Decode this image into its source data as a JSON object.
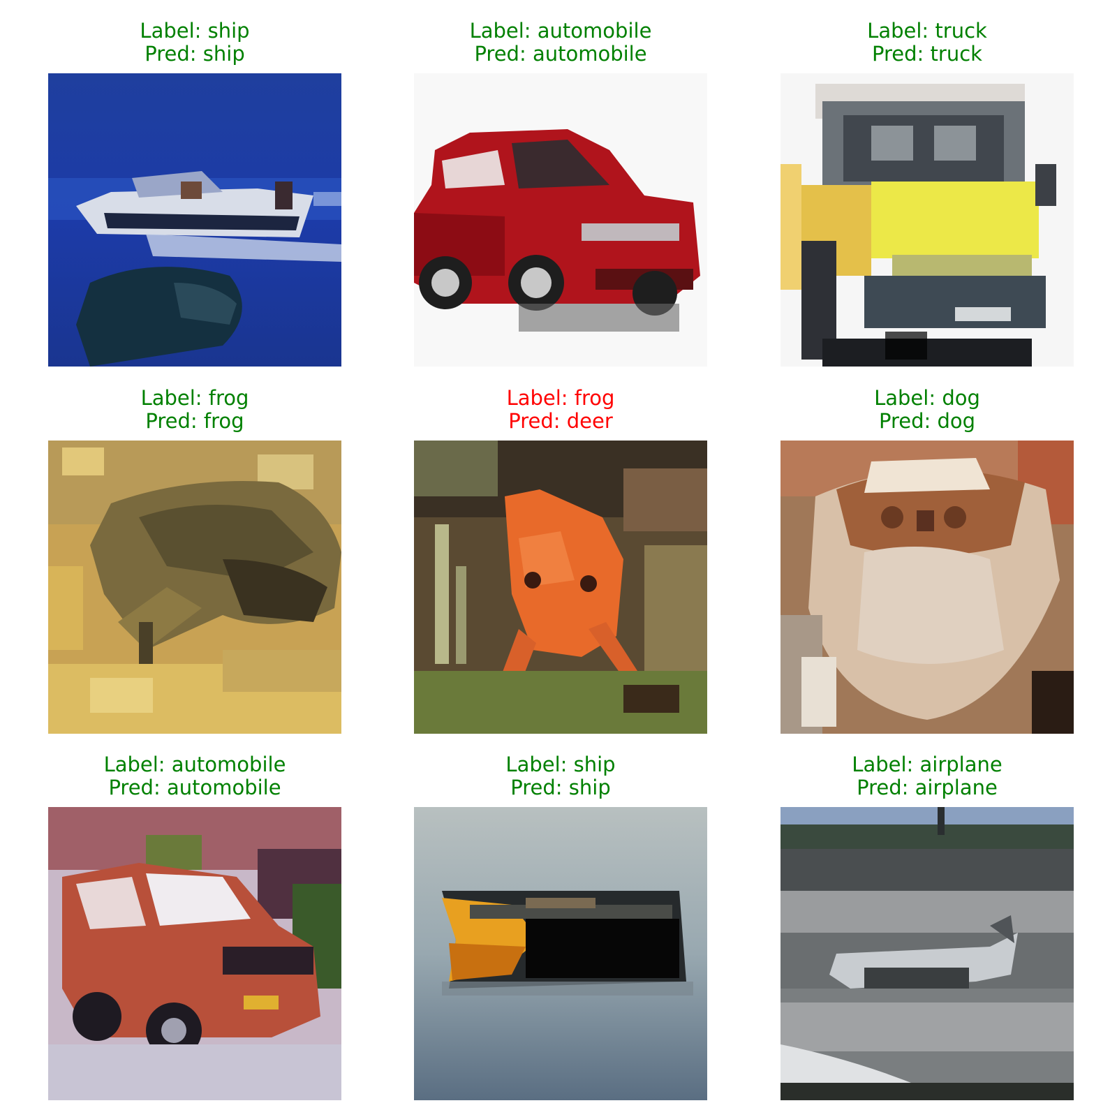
{
  "colors": {
    "correct": "#008000",
    "incorrect": "#ff0000"
  },
  "predictions": [
    {
      "label_text": "Label: ship",
      "pred_text": "Pred: ship",
      "label": "ship",
      "pred": "ship",
      "correct": true,
      "image": "speedboat-on-blue-water"
    },
    {
      "label_text": "Label: automobile",
      "pred_text": "Pred: automobile",
      "label": "automobile",
      "pred": "automobile",
      "correct": true,
      "image": "red-hatchback-on-white"
    },
    {
      "label_text": "Label: truck",
      "pred_text": "Pred: truck",
      "label": "truck",
      "pred": "truck",
      "correct": true,
      "image": "yellow-truck-front-view"
    },
    {
      "label_text": "Label: frog",
      "pred_text": "Pred: frog",
      "label": "frog",
      "pred": "frog",
      "correct": true,
      "image": "frog-on-sand"
    },
    {
      "label_text": "Label: frog",
      "pred_text": "Pred: deer",
      "label": "frog",
      "pred": "deer",
      "correct": false,
      "image": "orange-frog-in-grass"
    },
    {
      "label_text": "Label: dog",
      "pred_text": "Pred: dog",
      "label": "dog",
      "pred": "dog",
      "correct": true,
      "image": "fluffy-dog-face"
    },
    {
      "label_text": "Label: automobile",
      "pred_text": "Pred: automobile",
      "label": "automobile",
      "pred": "automobile",
      "correct": true,
      "image": "red-sedan-on-street"
    },
    {
      "label_text": "Label: ship",
      "pred_text": "Pred: ship",
      "label": "ship",
      "pred": "ship",
      "correct": true,
      "image": "boat-on-gray-water"
    },
    {
      "label_text": "Label: airplane",
      "pred_text": "Pred: airplane",
      "label": "airplane",
      "pred": "airplane",
      "correct": true,
      "image": "airplane-on-runway"
    }
  ]
}
